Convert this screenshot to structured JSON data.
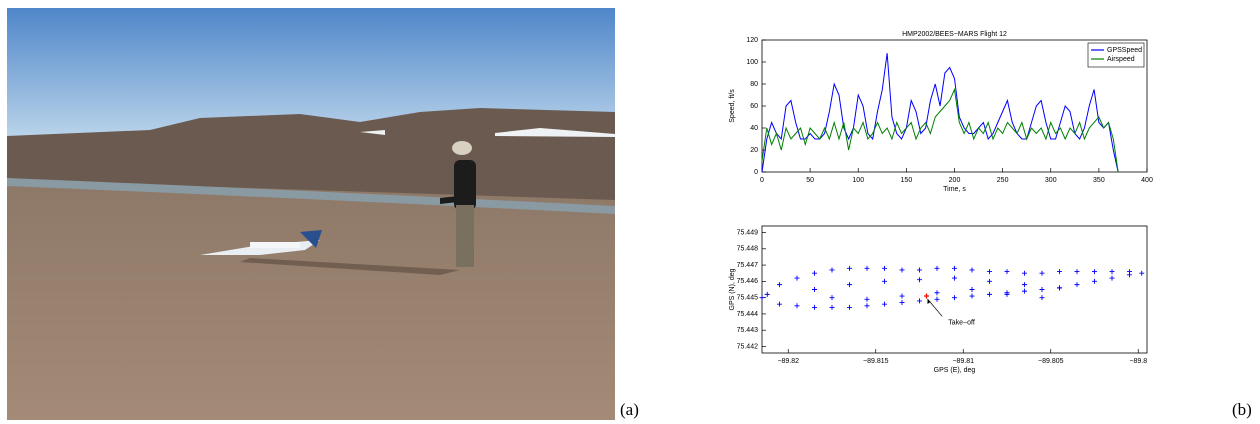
{
  "panel_labels": [
    "(a)",
    "(b)"
  ],
  "chart_data": [
    {
      "type": "line",
      "title": "HMP2002/BEES−MARS Flight 12",
      "x_label": "Time, s",
      "y_label": "Speed, ft/s",
      "x": [
        0,
        5,
        10,
        15,
        20,
        25,
        30,
        35,
        40,
        45,
        50,
        55,
        60,
        65,
        70,
        75,
        80,
        85,
        90,
        95,
        100,
        105,
        110,
        115,
        120,
        125,
        130,
        135,
        140,
        145,
        150,
        155,
        160,
        165,
        170,
        175,
        180,
        185,
        190,
        195,
        200,
        205,
        210,
        215,
        220,
        225,
        230,
        235,
        240,
        245,
        250,
        255,
        260,
        265,
        270,
        275,
        280,
        285,
        290,
        295,
        300,
        305,
        310,
        315,
        320,
        325,
        330,
        335,
        340,
        345,
        350,
        355,
        360,
        365,
        370
      ],
      "series": [
        {
          "name": "GPSSpeed",
          "color": "#0000ff",
          "values": [
            0,
            30,
            45,
            35,
            30,
            60,
            65,
            45,
            30,
            30,
            35,
            30,
            30,
            35,
            55,
            80,
            70,
            40,
            30,
            40,
            70,
            60,
            35,
            30,
            55,
            75,
            108,
            50,
            35,
            30,
            40,
            65,
            55,
            35,
            40,
            65,
            80,
            60,
            90,
            95,
            85,
            50,
            40,
            35,
            35,
            40,
            45,
            30,
            35,
            45,
            55,
            65,
            45,
            35,
            30,
            30,
            45,
            60,
            65,
            45,
            30,
            30,
            45,
            60,
            55,
            35,
            30,
            40,
            60,
            75,
            45,
            40,
            45,
            20,
            0
          ]
        },
        {
          "name": "Airspeed",
          "color": "#008000",
          "values": [
            10,
            40,
            25,
            35,
            20,
            40,
            30,
            35,
            40,
            25,
            40,
            35,
            30,
            40,
            30,
            45,
            30,
            45,
            20,
            40,
            35,
            45,
            30,
            35,
            45,
            35,
            40,
            30,
            45,
            35,
            40,
            45,
            30,
            40,
            45,
            35,
            50,
            55,
            60,
            65,
            75,
            45,
            35,
            45,
            30,
            40,
            35,
            45,
            30,
            40,
            35,
            45,
            40,
            35,
            45,
            30,
            40,
            35,
            40,
            30,
            45,
            35,
            40,
            30,
            40,
            35,
            45,
            30,
            40,
            45,
            50,
            40,
            45,
            30,
            0
          ]
        }
      ],
      "xlim": [
        0,
        400
      ],
      "xticks": [
        0,
        50,
        100,
        150,
        200,
        250,
        300,
        350,
        400
      ],
      "ylim": [
        0,
        120
      ],
      "yticks": [
        0,
        20,
        40,
        60,
        80,
        100,
        120
      ],
      "legend": "upper right"
    },
    {
      "type": "scatter",
      "x_label": "GPS (E), deg",
      "y_label": "GPS (N), deg",
      "color": "#0000ff",
      "x": [
        -89.8212,
        -89.8205,
        -89.8195,
        -89.8185,
        -89.8175,
        -89.8165,
        -89.8155,
        -89.8145,
        -89.8135,
        -89.8125,
        -89.8115,
        -89.8105,
        -89.8095,
        -89.8085,
        -89.8075,
        -89.8065,
        -89.8055,
        -89.8045,
        -89.8035,
        -89.8025,
        -89.8015,
        -89.8005,
        -89.7998,
        -89.8215,
        -89.8205,
        -89.8195,
        -89.8185,
        -89.8175,
        -89.8165,
        -89.8155,
        -89.8145,
        -89.8135,
        -89.8125,
        -89.8115,
        -89.8105,
        -89.8095,
        -89.8085,
        -89.8075,
        -89.8065,
        -89.8055,
        -89.8045,
        -89.8035,
        -89.8025,
        -89.8015,
        -89.8005,
        -89.8185,
        -89.8165,
        -89.8145,
        -89.8125,
        -89.8105,
        -89.8085,
        -89.8065,
        -89.8045,
        -89.8175,
        -89.8155,
        -89.8135,
        -89.8115,
        -89.8095,
        -89.8075,
        -89.8055
      ],
      "values": [
        75.4452,
        75.4458,
        75.4462,
        75.4465,
        75.4467,
        75.4468,
        75.4468,
        75.4468,
        75.4467,
        75.4467,
        75.4468,
        75.4468,
        75.4467,
        75.4466,
        75.4466,
        75.4465,
        75.4465,
        75.4466,
        75.4466,
        75.4466,
        75.4466,
        75.4466,
        75.4465,
        75.445,
        75.4446,
        75.4445,
        75.4444,
        75.4444,
        75.4444,
        75.4445,
        75.4446,
        75.4447,
        75.4448,
        75.4449,
        75.445,
        75.4451,
        75.4452,
        75.4453,
        75.4454,
        75.4455,
        75.4456,
        75.4458,
        75.446,
        75.4462,
        75.4464,
        75.4455,
        75.4458,
        75.446,
        75.4461,
        75.4462,
        75.446,
        75.4458,
        75.4456,
        75.445,
        75.4449,
        75.4451,
        75.4453,
        75.4455,
        75.4452,
        75.445
      ],
      "highlight": {
        "x": -89.8121,
        "y": 75.4451,
        "color": "#ff0000"
      },
      "annotation": {
        "text": "Take−off",
        "x": -89.8112,
        "y": 75.4436
      },
      "xlim": [
        -89.8215,
        -89.7995
      ],
      "xticks": [
        {
          "value": -89.82,
          "label": "−89.82"
        },
        {
          "value": -89.815,
          "label": "−89.815"
        },
        {
          "value": -89.81,
          "label": "−89.81"
        },
        {
          "value": -89.805,
          "label": "−89.805"
        },
        {
          "value": -89.8,
          "label": "−89.8"
        }
      ],
      "ylim": [
        75.4416,
        75.4494
      ],
      "yticks": [
        75.442,
        75.443,
        75.444,
        75.445,
        75.446,
        75.447,
        75.448,
        75.449
      ]
    }
  ]
}
